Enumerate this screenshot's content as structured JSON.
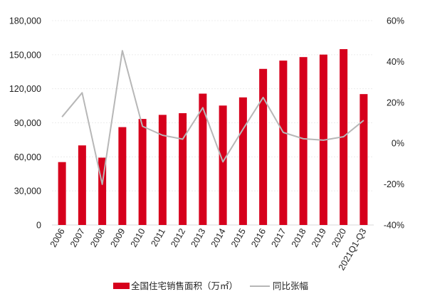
{
  "chart_data": {
    "type": "bar",
    "categories": [
      "2006",
      "2007",
      "2008",
      "2009",
      "2010",
      "2011",
      "2012",
      "2013",
      "2014",
      "2015",
      "2016",
      "2017",
      "2018",
      "2019",
      "2020",
      "2021Q1-Q3"
    ],
    "series": [
      {
        "name": "全国住宅销售面积（万㎡）",
        "type": "bar",
        "axis": "left",
        "color": "#d6001c",
        "values": [
          55400,
          70100,
          59300,
          86200,
          93400,
          97000,
          98500,
          115700,
          105200,
          112400,
          137500,
          144800,
          147900,
          150100,
          154900,
          115300
        ]
      },
      {
        "name": "同比张幅",
        "type": "line",
        "axis": "right",
        "color": "#b7b7b7",
        "values": [
          0.129,
          0.247,
          -0.201,
          0.453,
          0.083,
          0.039,
          0.02,
          0.174,
          -0.091,
          0.069,
          0.224,
          0.053,
          0.022,
          0.015,
          0.032,
          0.112
        ]
      }
    ],
    "y_left": {
      "ylim": [
        0,
        180000
      ],
      "ticks": [
        0,
        30000,
        60000,
        90000,
        120000,
        150000,
        180000
      ],
      "tick_labels": [
        "0",
        "30,000",
        "60,000",
        "90,000",
        "120,000",
        "150,000",
        "180,000"
      ]
    },
    "y_right": {
      "ylim": [
        -0.4,
        0.6
      ],
      "ticks": [
        -0.4,
        -0.2,
        0,
        0.2,
        0.4,
        0.6
      ],
      "tick_labels": [
        "-40%",
        "-20%",
        "0%",
        "20%",
        "40%",
        "60%"
      ]
    },
    "grid": true,
    "legend_position": "bottom-center",
    "xlabel": "",
    "ylabel": "",
    "title": ""
  }
}
